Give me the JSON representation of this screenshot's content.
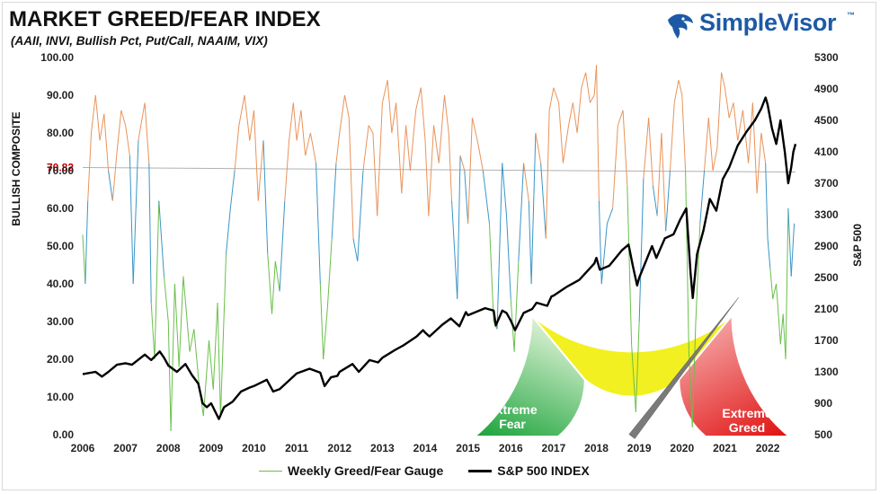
{
  "header": {
    "title": "MARKET GREED/FEAR INDEX",
    "subtitle": "(AAII, INVI, Bullish Pct, Put/Call, NAAIM, VIX)"
  },
  "brand": {
    "name": "SimpleVisor",
    "tm": "™",
    "color": "#1d5aa6"
  },
  "colors": {
    "greed": "#e9935a",
    "neutral": "#3a95c8",
    "fear": "#6abf4b",
    "sp500": "#000000",
    "avg_line": "#b0b0b0",
    "avg_label": "#c00000"
  },
  "chart_data": {
    "type": "line",
    "x": [
      "2006",
      "2007",
      "2008",
      "2009",
      "2010",
      "2011",
      "2012",
      "2013",
      "2014",
      "2015",
      "2016",
      "2017",
      "2018",
      "2019",
      "2020",
      "2021",
      "2022"
    ],
    "xlim": [
      2006,
      2022.65
    ],
    "y_left": {
      "label": "BULLISH COMPOSITE",
      "lim": [
        0,
        100
      ],
      "ticks": [
        "0.00",
        "10.00",
        "20.00",
        "30.00",
        "40.00",
        "50.00",
        "60.00",
        "70.00",
        "80.00",
        "90.00",
        "100.00"
      ]
    },
    "y_right": {
      "label": "S&P 500",
      "lim": [
        500,
        5300
      ],
      "ticks": [
        "500",
        "900",
        "1300",
        "1700",
        "2100",
        "2500",
        "2900",
        "3300",
        "3700",
        "4100",
        "4500",
        "4900",
        "5300"
      ]
    },
    "average": {
      "value": 70.82,
      "label": "70.82"
    },
    "series": [
      {
        "name": "Weekly Greed/Fear Gauge",
        "axis": "left",
        "points": [
          [
            2006.0,
            53
          ],
          [
            2006.06,
            40
          ],
          [
            2006.12,
            62
          ],
          [
            2006.2,
            80
          ],
          [
            2006.3,
            90
          ],
          [
            2006.4,
            78
          ],
          [
            2006.5,
            85
          ],
          [
            2006.6,
            70
          ],
          [
            2006.7,
            62
          ],
          [
            2006.8,
            75
          ],
          [
            2006.9,
            86
          ],
          [
            2007.0,
            82
          ],
          [
            2007.1,
            74
          ],
          [
            2007.18,
            40
          ],
          [
            2007.3,
            78
          ],
          [
            2007.45,
            88
          ],
          [
            2007.55,
            72
          ],
          [
            2007.6,
            35
          ],
          [
            2007.68,
            20
          ],
          [
            2007.78,
            62
          ],
          [
            2007.9,
            42
          ],
          [
            2008.0,
            30
          ],
          [
            2008.06,
            1
          ],
          [
            2008.15,
            40
          ],
          [
            2008.25,
            18
          ],
          [
            2008.35,
            42
          ],
          [
            2008.5,
            22
          ],
          [
            2008.6,
            28
          ],
          [
            2008.72,
            13
          ],
          [
            2008.82,
            5
          ],
          [
            2008.95,
            25
          ],
          [
            2009.05,
            12
          ],
          [
            2009.15,
            35
          ],
          [
            2009.22,
            5
          ],
          [
            2009.35,
            48
          ],
          [
            2009.45,
            60
          ],
          [
            2009.55,
            70
          ],
          [
            2009.65,
            82
          ],
          [
            2009.78,
            90
          ],
          [
            2009.9,
            78
          ],
          [
            2010.0,
            86
          ],
          [
            2010.1,
            62
          ],
          [
            2010.22,
            78
          ],
          [
            2010.32,
            48
          ],
          [
            2010.42,
            32
          ],
          [
            2010.5,
            46
          ],
          [
            2010.6,
            38
          ],
          [
            2010.72,
            62
          ],
          [
            2010.82,
            78
          ],
          [
            2010.92,
            88
          ],
          [
            2011.0,
            78
          ],
          [
            2011.1,
            86
          ],
          [
            2011.2,
            74
          ],
          [
            2011.32,
            80
          ],
          [
            2011.45,
            72
          ],
          [
            2011.55,
            40
          ],
          [
            2011.62,
            20
          ],
          [
            2011.72,
            34
          ],
          [
            2011.82,
            52
          ],
          [
            2011.92,
            72
          ],
          [
            2012.0,
            80
          ],
          [
            2012.12,
            90
          ],
          [
            2012.22,
            84
          ],
          [
            2012.32,
            52
          ],
          [
            2012.42,
            46
          ],
          [
            2012.55,
            70
          ],
          [
            2012.68,
            82
          ],
          [
            2012.78,
            80
          ],
          [
            2012.88,
            58
          ],
          [
            2013.0,
            88
          ],
          [
            2013.12,
            94
          ],
          [
            2013.22,
            80
          ],
          [
            2013.32,
            88
          ],
          [
            2013.45,
            64
          ],
          [
            2013.55,
            82
          ],
          [
            2013.65,
            70
          ],
          [
            2013.78,
            86
          ],
          [
            2013.9,
            92
          ],
          [
            2014.0,
            78
          ],
          [
            2014.08,
            58
          ],
          [
            2014.2,
            82
          ],
          [
            2014.32,
            72
          ],
          [
            2014.45,
            90
          ],
          [
            2014.55,
            80
          ],
          [
            2014.62,
            62
          ],
          [
            2014.75,
            36
          ],
          [
            2014.82,
            74
          ],
          [
            2014.92,
            70
          ],
          [
            2015.0,
            56
          ],
          [
            2015.1,
            84
          ],
          [
            2015.22,
            78
          ],
          [
            2015.35,
            70
          ],
          [
            2015.5,
            56
          ],
          [
            2015.6,
            30
          ],
          [
            2015.68,
            28
          ],
          [
            2015.8,
            72
          ],
          [
            2015.9,
            58
          ],
          [
            2016.0,
            36
          ],
          [
            2016.08,
            22
          ],
          [
            2016.18,
            46
          ],
          [
            2016.3,
            72
          ],
          [
            2016.42,
            62
          ],
          [
            2016.48,
            40
          ],
          [
            2016.58,
            80
          ],
          [
            2016.7,
            72
          ],
          [
            2016.82,
            52
          ],
          [
            2016.9,
            86
          ],
          [
            2017.0,
            92
          ],
          [
            2017.12,
            88
          ],
          [
            2017.22,
            72
          ],
          [
            2017.35,
            82
          ],
          [
            2017.45,
            88
          ],
          [
            2017.55,
            80
          ],
          [
            2017.65,
            92
          ],
          [
            2017.75,
            96
          ],
          [
            2017.85,
            88
          ],
          [
            2017.95,
            90
          ],
          [
            2018.0,
            98
          ],
          [
            2018.06,
            62
          ],
          [
            2018.12,
            40
          ],
          [
            2018.25,
            56
          ],
          [
            2018.38,
            60
          ],
          [
            2018.5,
            82
          ],
          [
            2018.62,
            86
          ],
          [
            2018.72,
            66
          ],
          [
            2018.82,
            24
          ],
          [
            2018.92,
            6
          ],
          [
            2019.0,
            30
          ],
          [
            2019.1,
            68
          ],
          [
            2019.22,
            84
          ],
          [
            2019.32,
            66
          ],
          [
            2019.42,
            58
          ],
          [
            2019.52,
            80
          ],
          [
            2019.62,
            54
          ],
          [
            2019.72,
            70
          ],
          [
            2019.82,
            88
          ],
          [
            2019.92,
            94
          ],
          [
            2020.0,
            90
          ],
          [
            2020.08,
            70
          ],
          [
            2020.16,
            22
          ],
          [
            2020.24,
            2
          ],
          [
            2020.32,
            30
          ],
          [
            2020.42,
            56
          ],
          [
            2020.52,
            70
          ],
          [
            2020.62,
            84
          ],
          [
            2020.72,
            70
          ],
          [
            2020.82,
            76
          ],
          [
            2020.92,
            96
          ],
          [
            2021.0,
            92
          ],
          [
            2021.1,
            84
          ],
          [
            2021.2,
            88
          ],
          [
            2021.3,
            78
          ],
          [
            2021.42,
            86
          ],
          [
            2021.55,
            72
          ],
          [
            2021.65,
            88
          ],
          [
            2021.75,
            64
          ],
          [
            2021.85,
            80
          ],
          [
            2021.95,
            72
          ],
          [
            2022.0,
            52
          ],
          [
            2022.06,
            44
          ],
          [
            2022.12,
            36
          ],
          [
            2022.2,
            40
          ],
          [
            2022.3,
            24
          ],
          [
            2022.36,
            32
          ],
          [
            2022.42,
            20
          ],
          [
            2022.48,
            60
          ],
          [
            2022.55,
            42
          ],
          [
            2022.62,
            56
          ]
        ]
      },
      {
        "name": "S&P 500 INDEX",
        "axis": "right",
        "points": [
          [
            2006.0,
            1270
          ],
          [
            2006.3,
            1300
          ],
          [
            2006.45,
            1240
          ],
          [
            2006.6,
            1300
          ],
          [
            2006.8,
            1390
          ],
          [
            2007.0,
            1410
          ],
          [
            2007.15,
            1390
          ],
          [
            2007.45,
            1520
          ],
          [
            2007.6,
            1450
          ],
          [
            2007.8,
            1560
          ],
          [
            2007.9,
            1480
          ],
          [
            2008.0,
            1380
          ],
          [
            2008.2,
            1300
          ],
          [
            2008.4,
            1400
          ],
          [
            2008.55,
            1260
          ],
          [
            2008.7,
            1150
          ],
          [
            2008.8,
            900
          ],
          [
            2008.9,
            850
          ],
          [
            2009.0,
            900
          ],
          [
            2009.18,
            700
          ],
          [
            2009.3,
            850
          ],
          [
            2009.5,
            920
          ],
          [
            2009.7,
            1050
          ],
          [
            2009.9,
            1100
          ],
          [
            2010.0,
            1120
          ],
          [
            2010.3,
            1200
          ],
          [
            2010.45,
            1050
          ],
          [
            2010.6,
            1080
          ],
          [
            2010.8,
            1180
          ],
          [
            2011.0,
            1280
          ],
          [
            2011.3,
            1340
          ],
          [
            2011.55,
            1290
          ],
          [
            2011.65,
            1120
          ],
          [
            2011.8,
            1230
          ],
          [
            2011.95,
            1250
          ],
          [
            2012.0,
            1300
          ],
          [
            2012.3,
            1400
          ],
          [
            2012.45,
            1300
          ],
          [
            2012.7,
            1450
          ],
          [
            2012.9,
            1420
          ],
          [
            2013.0,
            1480
          ],
          [
            2013.3,
            1580
          ],
          [
            2013.5,
            1640
          ],
          [
            2013.8,
            1750
          ],
          [
            2013.95,
            1830
          ],
          [
            2014.0,
            1800
          ],
          [
            2014.1,
            1750
          ],
          [
            2014.4,
            1900
          ],
          [
            2014.6,
            1980
          ],
          [
            2014.8,
            1880
          ],
          [
            2014.95,
            2060
          ],
          [
            2015.0,
            2020
          ],
          [
            2015.4,
            2110
          ],
          [
            2015.6,
            2080
          ],
          [
            2015.65,
            1890
          ],
          [
            2015.8,
            2080
          ],
          [
            2015.9,
            2050
          ],
          [
            2016.0,
            1950
          ],
          [
            2016.1,
            1830
          ],
          [
            2016.3,
            2050
          ],
          [
            2016.5,
            2100
          ],
          [
            2016.6,
            2180
          ],
          [
            2016.85,
            2140
          ],
          [
            2016.95,
            2260
          ],
          [
            2017.0,
            2270
          ],
          [
            2017.3,
            2380
          ],
          [
            2017.6,
            2470
          ],
          [
            2017.95,
            2680
          ],
          [
            2018.0,
            2750
          ],
          [
            2018.08,
            2600
          ],
          [
            2018.3,
            2650
          ],
          [
            2018.6,
            2850
          ],
          [
            2018.75,
            2920
          ],
          [
            2018.85,
            2650
          ],
          [
            2018.95,
            2400
          ],
          [
            2019.0,
            2500
          ],
          [
            2019.3,
            2900
          ],
          [
            2019.4,
            2750
          ],
          [
            2019.6,
            3000
          ],
          [
            2019.8,
            3050
          ],
          [
            2019.95,
            3230
          ],
          [
            2020.1,
            3380
          ],
          [
            2020.2,
            2550
          ],
          [
            2020.25,
            2240
          ],
          [
            2020.35,
            2800
          ],
          [
            2020.5,
            3100
          ],
          [
            2020.65,
            3500
          ],
          [
            2020.8,
            3350
          ],
          [
            2020.95,
            3750
          ],
          [
            2021.1,
            3900
          ],
          [
            2021.3,
            4180
          ],
          [
            2021.5,
            4350
          ],
          [
            2021.7,
            4500
          ],
          [
            2021.85,
            4650
          ],
          [
            2021.95,
            4790
          ],
          [
            2022.0,
            4700
          ],
          [
            2022.1,
            4400
          ],
          [
            2022.2,
            4200
          ],
          [
            2022.3,
            4500
          ],
          [
            2022.4,
            4100
          ],
          [
            2022.48,
            3700
          ],
          [
            2022.55,
            3900
          ],
          [
            2022.6,
            4100
          ],
          [
            2022.65,
            4200
          ]
        ]
      }
    ],
    "gauge": {
      "labels": {
        "fear": "Extreme\nFear",
        "greed": "Extreme\nGreed"
      },
      "needle_value": 70.82,
      "zones": [
        "extreme-fear",
        "neutral",
        "extreme-greed"
      ]
    }
  }
}
